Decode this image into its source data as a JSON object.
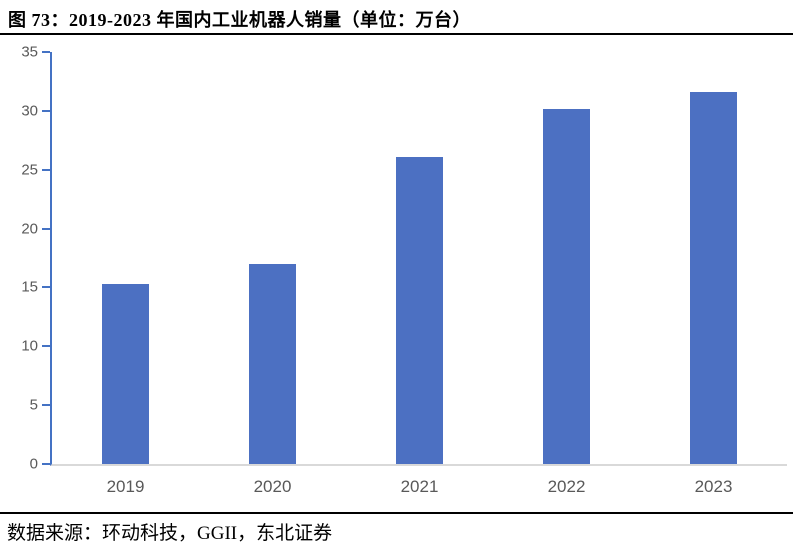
{
  "title": "图 73：2019-2023 年国内工业机器人销量（单位：万台）",
  "footer": {
    "source_label": "数据来源：环动科技，GGII，东北证券"
  },
  "colors": {
    "bar": "#4C70C2",
    "axis": "#4472C4",
    "tick_label": "#595959",
    "baseline": "#D9D9D9",
    "rule": "#000000"
  },
  "chart_data": {
    "type": "bar",
    "title": "图 73：2019-2023 年国内工业机器人销量（单位：万台）",
    "categories": [
      "2019",
      "2020",
      "2021",
      "2022",
      "2023"
    ],
    "values": [
      15.3,
      17.0,
      26.1,
      30.2,
      31.6
    ],
    "xlabel": "",
    "ylabel": "",
    "unit": "万台",
    "ylim": [
      0,
      35
    ],
    "yticks": [
      0,
      5,
      10,
      15,
      20,
      25,
      30,
      35
    ],
    "grid": false,
    "legend_visible": false,
    "bar_color": "#4C70C2"
  }
}
